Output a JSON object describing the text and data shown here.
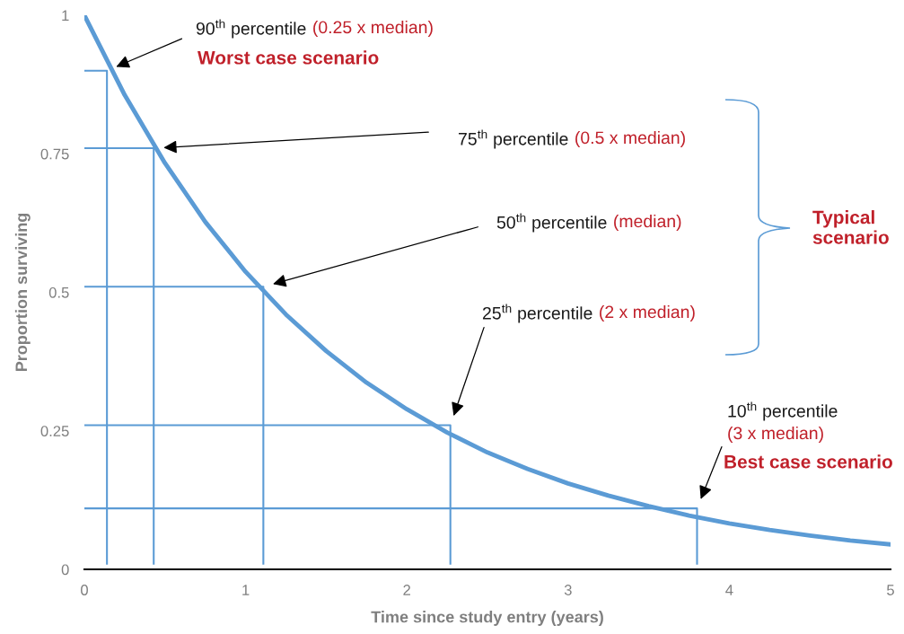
{
  "chart_data": {
    "type": "line",
    "xlabel": "Time since study entry (years)",
    "ylabel": "Proportion surviving",
    "xlim": [
      0,
      5
    ],
    "ylim": [
      0,
      1
    ],
    "xticks": [
      0,
      1,
      2,
      3,
      4,
      5
    ],
    "yticks": [
      0,
      0.25,
      0.5,
      0.75,
      1
    ],
    "grid": false,
    "marker": "none",
    "line_style": "solid",
    "series": [
      {
        "color": "#5b9bd5",
        "x": [
          0,
          0.25,
          0.5,
          0.75,
          1,
          1.25,
          1.5,
          1.75,
          2,
          2.25,
          2.5,
          2.75,
          3,
          3.25,
          3.5,
          3.75,
          4,
          4.25,
          4.5,
          4.75,
          5
        ],
        "values": [
          1,
          0.856,
          0.733,
          0.627,
          0.537,
          0.46,
          0.394,
          0.337,
          0.289,
          0.247,
          0.211,
          0.181,
          0.155,
          0.133,
          0.114,
          0.097,
          0.083,
          0.071,
          0.061,
          0.052,
          0.045
        ]
      },
      {
        "color": "#5b9bd5",
        "x": [
          0,
          0.14,
          0.14
        ],
        "values": [
          0.9,
          0.9,
          0.01
        ]
      },
      {
        "color": "#5b9bd5",
        "x": [
          0,
          0.43,
          0.43
        ],
        "values": [
          0.76,
          0.76,
          0.01
        ]
      },
      {
        "color": "#5b9bd5",
        "x": [
          0,
          1.11,
          1.11
        ],
        "values": [
          0.51,
          0.51,
          0.01
        ]
      },
      {
        "color": "#5b9bd5",
        "x": [
          0,
          2.27,
          2.27
        ],
        "values": [
          0.26,
          0.26,
          0.01
        ]
      },
      {
        "color": "#5b9bd5",
        "x": [
          0,
          3.8,
          3.8
        ],
        "values": [
          0.11,
          0.11,
          0.01
        ]
      }
    ],
    "annotations": [
      "90$^{th}$ percentile (0.25 x median)",
      "75$^{th}$ percentile (0.5 x median)",
      "50$^{th}$ percentile (median)",
      "25$^{th}$ percentile (2 x median)",
      "10$^{th}$ percentile\n(3 x median)",
      "Worst case scenario",
      "Typical\nscenario",
      "Best case scenario"
    ]
  }
}
